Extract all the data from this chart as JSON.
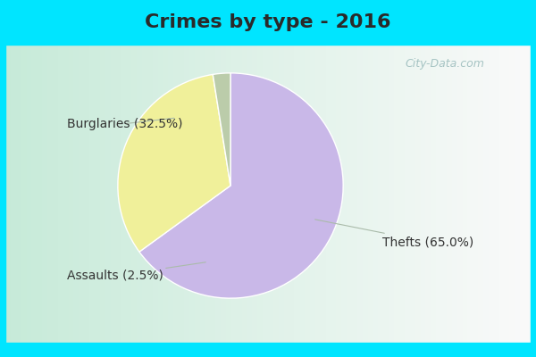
{
  "title": "Crimes by type - 2016",
  "slices": [
    {
      "label": "Thefts (65.0%)",
      "value": 65.0,
      "color": "#C9B8E8"
    },
    {
      "label": "Burglaries (32.5%)",
      "value": 32.5,
      "color": "#F0F09A"
    },
    {
      "label": "Assaults (2.5%)",
      "value": 2.5,
      "color": "#BBCCAA"
    }
  ],
  "background_top": "#00E5FF",
  "title_fontsize": 16,
  "label_fontsize": 10,
  "watermark": "City-Data.com",
  "title_color": "#2A2A2A",
  "label_color": "#333333"
}
